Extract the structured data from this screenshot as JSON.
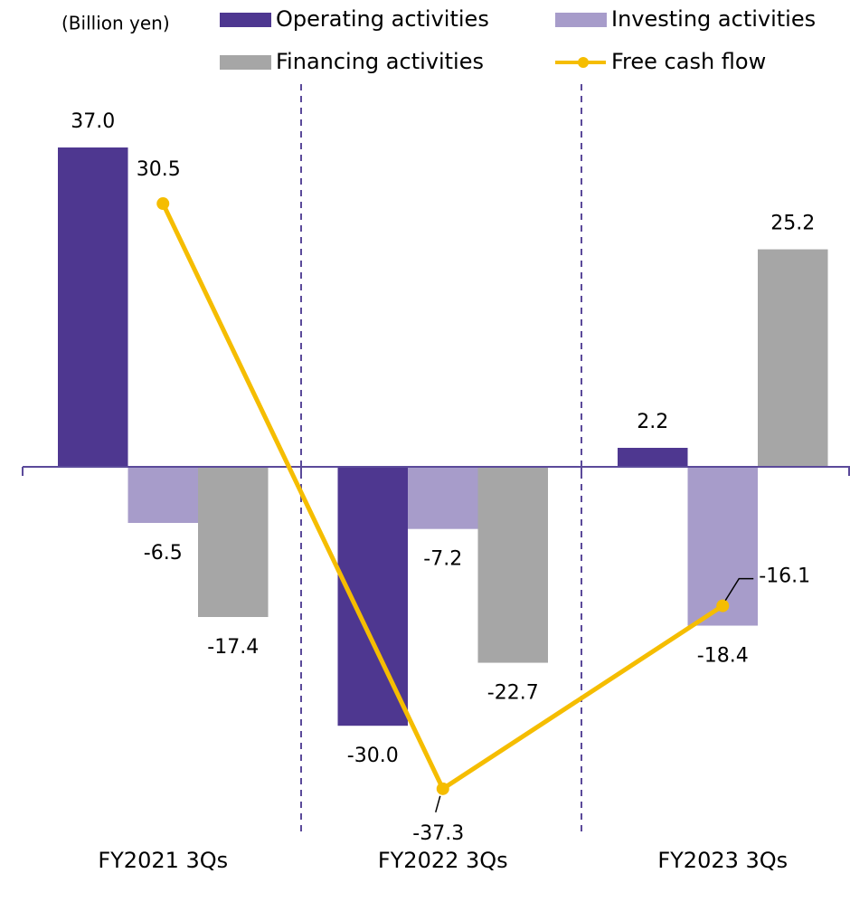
{
  "chart_data": {
    "type": "bar",
    "unit_label": "(Billion yen)",
    "categories": [
      "FY2021 3Qs",
      "FY2022 3Qs",
      "FY2023 3Qs"
    ],
    "ylim": [
      -40,
      40
    ],
    "series": [
      {
        "name": "Operating activities",
        "color": "#4e3790",
        "values": [
          37,
          -30,
          2.2
        ],
        "value_labels": [
          "37.0",
          "-30.0",
          "2.2"
        ]
      },
      {
        "name": "Investing activities",
        "color": "#a79cca",
        "values": [
          -6.5,
          -7.2,
          -18.4
        ]
      },
      {
        "name": "Financing activities",
        "color": "#a6a6a6",
        "values": [
          -17.4,
          -22.7,
          25.2
        ]
      },
      {
        "name": "Free cash flow",
        "type": "line",
        "color": "#f5bd00",
        "values": [
          30.5,
          -37.3,
          -16.1
        ]
      }
    ]
  }
}
